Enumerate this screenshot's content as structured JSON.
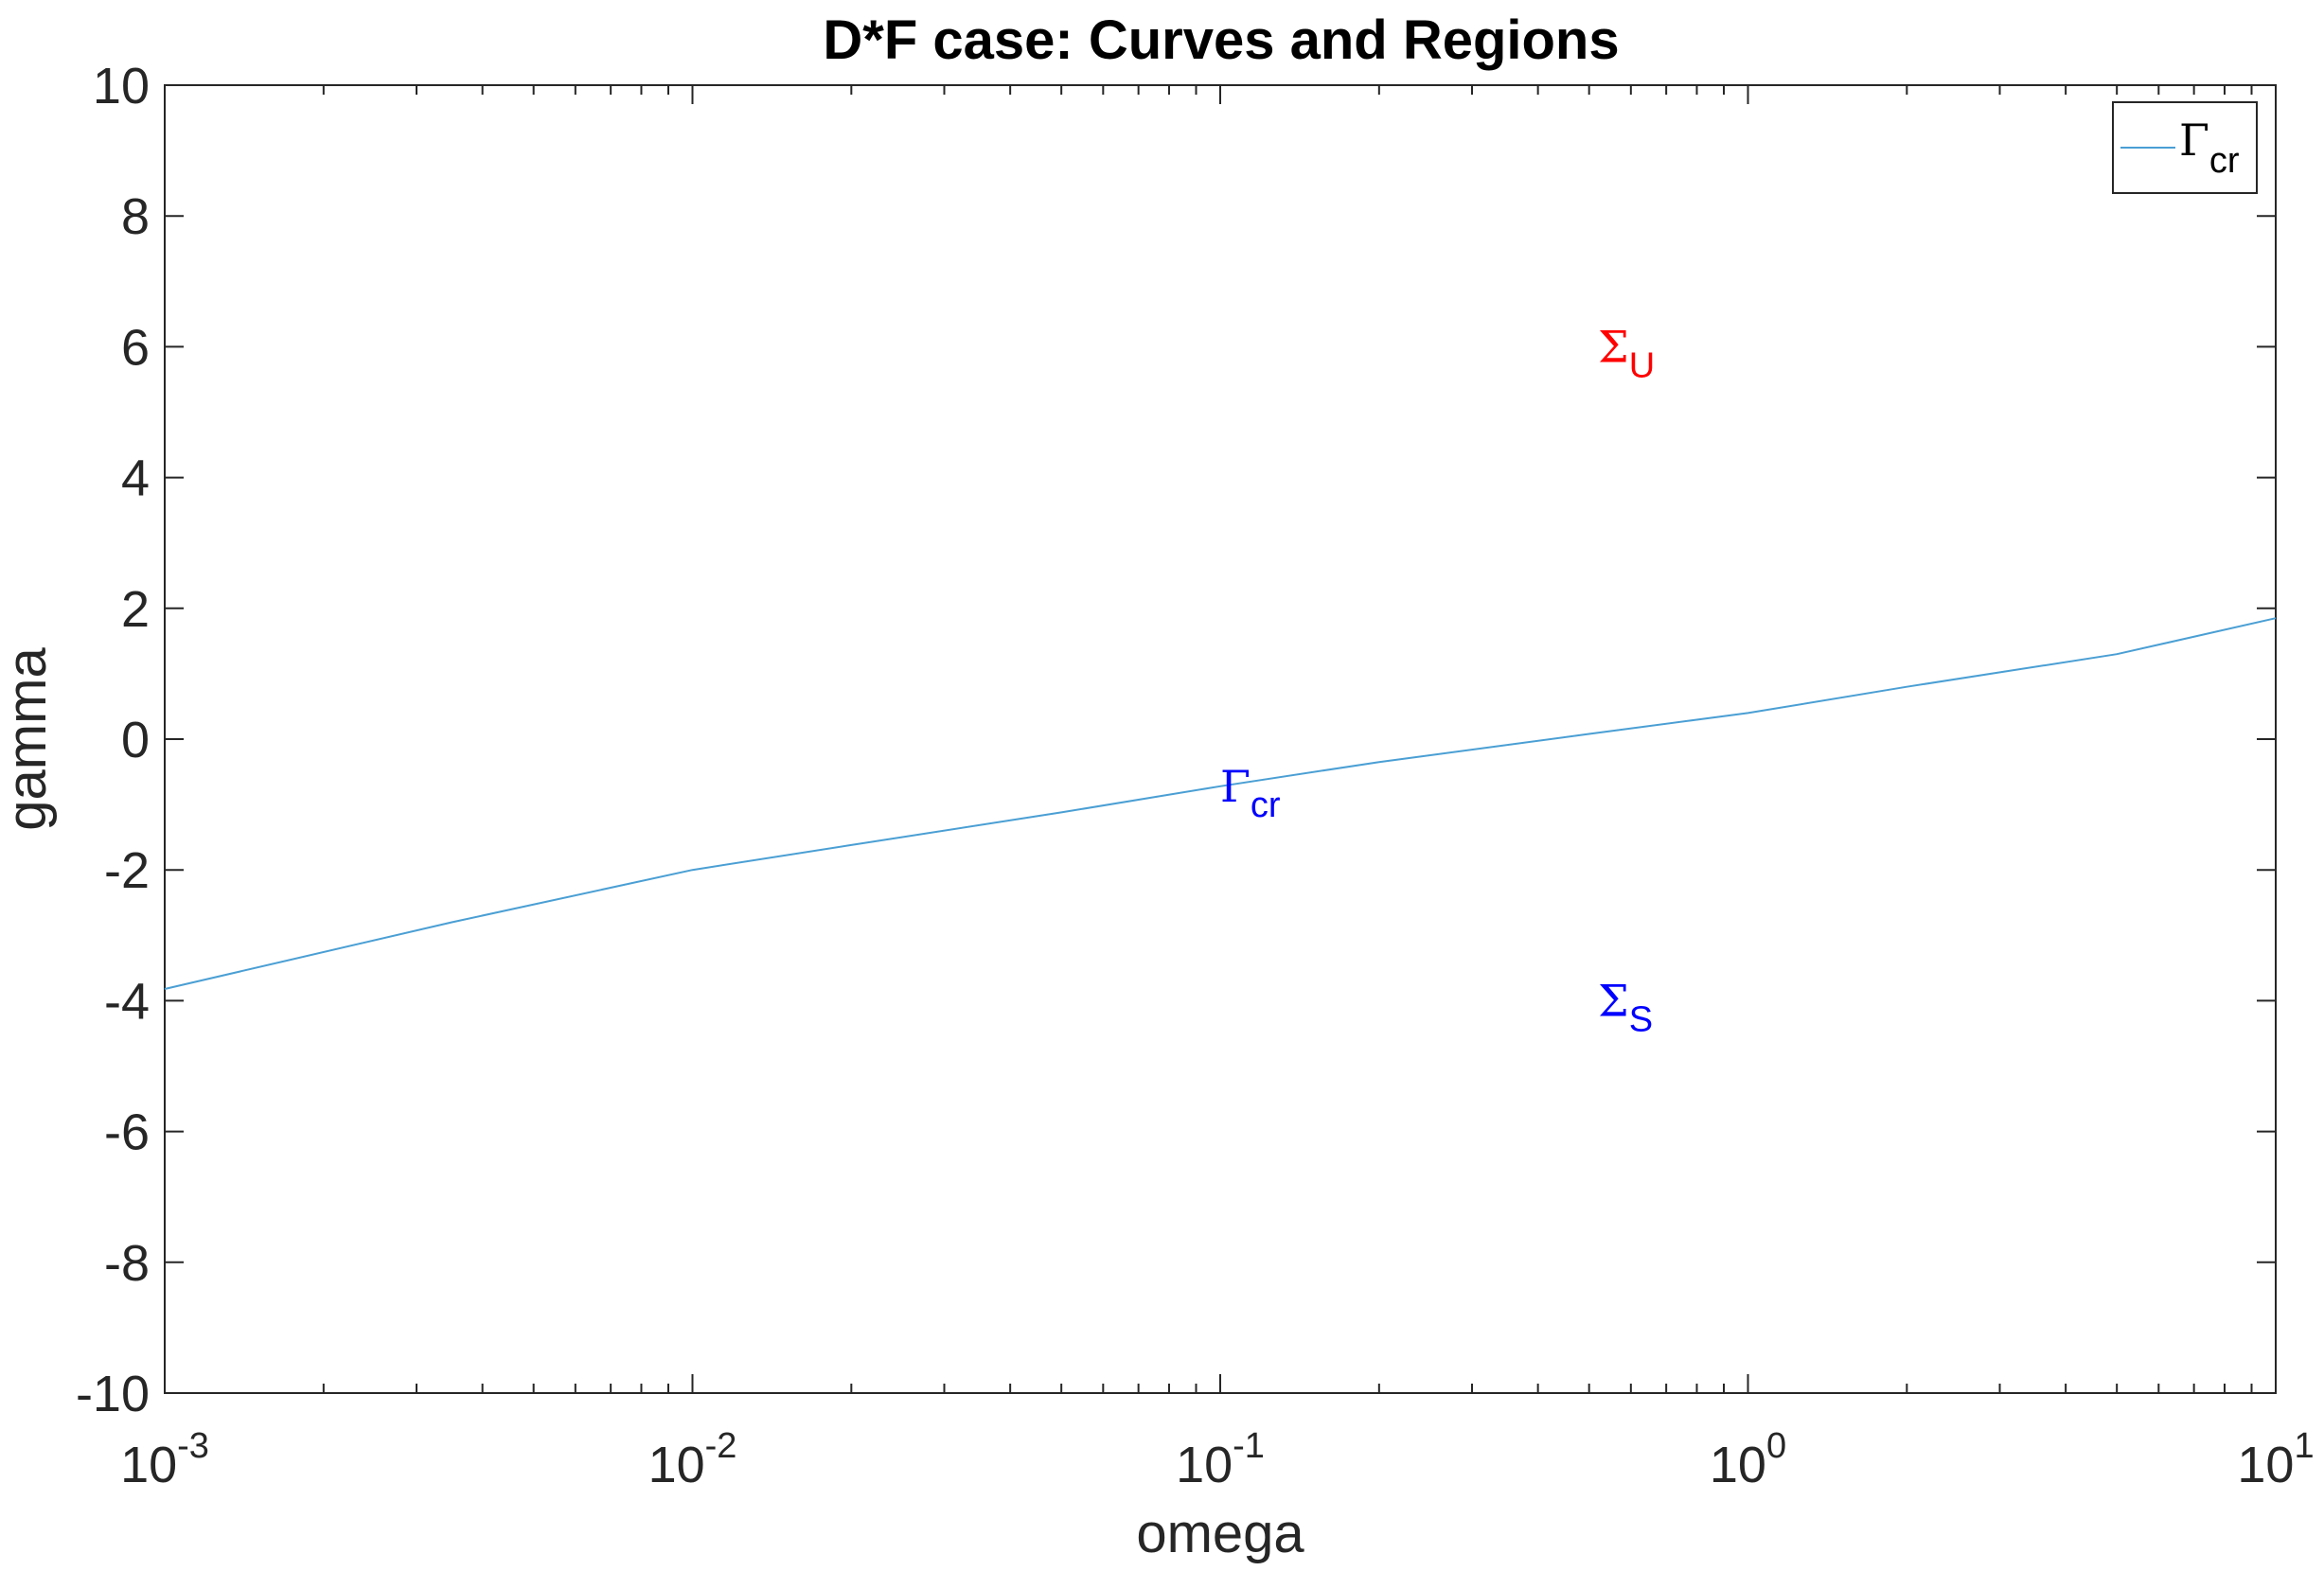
{
  "chart_data": {
    "type": "line",
    "title": "D*F case: Curves and Regions",
    "xlabel": "omega",
    "ylabel": "gamma",
    "xscale": "log",
    "xlim": [
      0.001,
      10
    ],
    "ylim": [
      -10,
      10
    ],
    "grid": false,
    "legend_placement": "top-right",
    "x_ticks": [
      {
        "base": "10",
        "exp": "-3"
      },
      {
        "base": "10",
        "exp": "-2"
      },
      {
        "base": "10",
        "exp": "-1"
      },
      {
        "base": "10",
        "exp": "0"
      },
      {
        "base": "10",
        "exp": "1"
      }
    ],
    "y_ticks": [
      "10",
      "8",
      "6",
      "4",
      "2",
      "0",
      "-2",
      "-4",
      "-6",
      "-8",
      "-10"
    ],
    "series": [
      {
        "name_symbol": "Γ",
        "name_subscript": "cr",
        "color": "#4a9fd4",
        "x": [
          0.001,
          0.0035,
          0.01,
          0.02,
          0.05,
          0.1,
          0.2,
          0.5,
          1,
          2,
          5,
          10
        ],
        "y": [
          -3.82,
          -2.8,
          -2.0,
          -1.62,
          -1.12,
          -0.72,
          -0.35,
          0.08,
          0.4,
          0.8,
          1.3,
          1.85
        ]
      }
    ],
    "annotations": [
      {
        "symbol": "Σ",
        "subscript": "U",
        "x": 0.52,
        "y": 6.0,
        "color": "#ff0000"
      },
      {
        "symbol": "Γ",
        "subscript": "cr",
        "x": 0.1,
        "y": -0.72,
        "color": "#0000ff"
      },
      {
        "symbol": "Σ",
        "subscript": "S",
        "x": 0.52,
        "y": -4.0,
        "color": "#0000ff"
      }
    ]
  }
}
